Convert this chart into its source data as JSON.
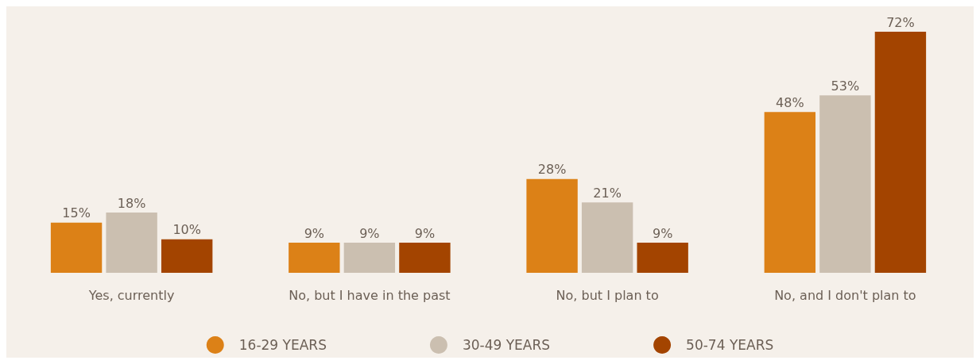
{
  "chart_data": {
    "type": "bar",
    "categories": [
      "Yes, currently",
      "No, but I have in the past",
      "No, but I plan to",
      "No, and I don't plan to"
    ],
    "series": [
      {
        "name": "16-29 YEARS",
        "color": "#dc8117",
        "values": [
          15,
          9,
          28,
          48
        ],
        "value_labels": [
          "15%",
          "9%",
          "28%",
          "48%"
        ]
      },
      {
        "name": "30-49 YEARS",
        "color": "#cbbfb0",
        "values": [
          18,
          9,
          21,
          53
        ],
        "value_labels": [
          "18%",
          "9%",
          "21%",
          "53%"
        ]
      },
      {
        "name": "50-74 YEARS",
        "color": "#a34400",
        "values": [
          10,
          9,
          9,
          72
        ],
        "value_labels": [
          "10%",
          "9%",
          "9%",
          "72%"
        ]
      }
    ],
    "legend": "bottom",
    "grid": false
  }
}
